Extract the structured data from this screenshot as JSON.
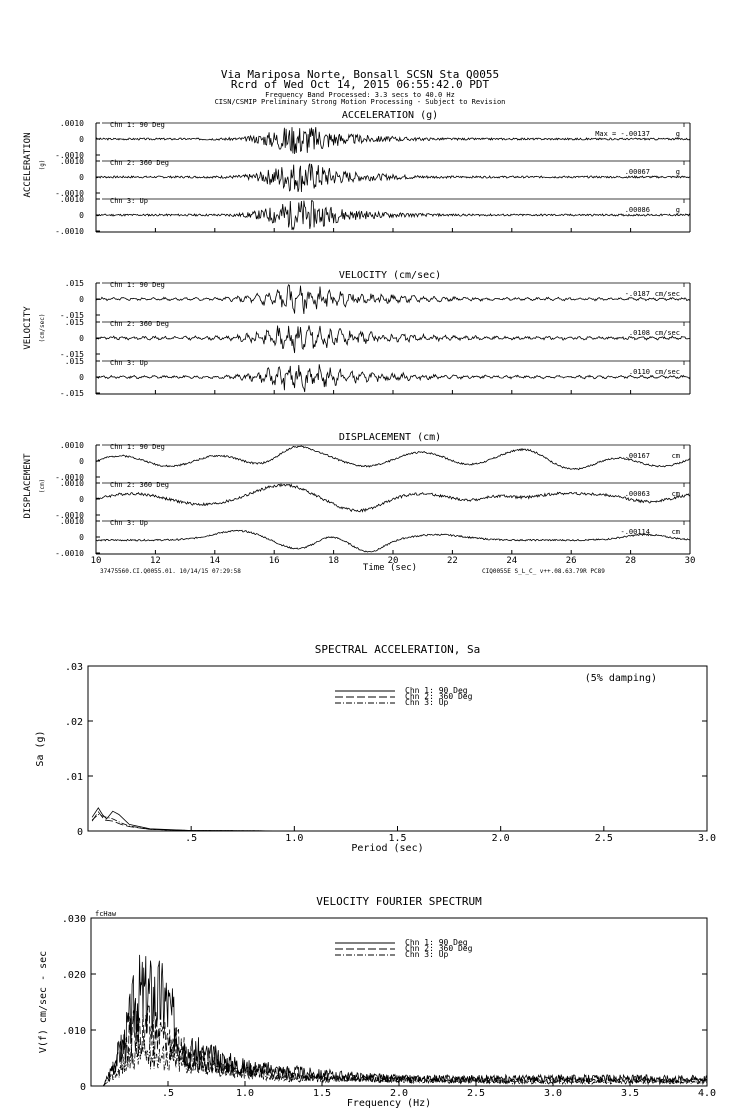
{
  "header": {
    "line1": "Via Mariposa Norte, Bonsall    SCSN Sta Q0055",
    "line2": "Rcrd of Wed Oct 14, 2015 06:55:42.0 PDT",
    "line3": "Frequency Band Processed: 3.3 secs to 40.0 Hz",
    "line4": "CISN/CSMIP Preliminary Strong Motion Processing - Subject to Revision"
  },
  "time_axis": {
    "xlabel": "Time (sec)",
    "ticks": [
      "10",
      "12",
      "14",
      "16",
      "18",
      "20",
      "22",
      "24",
      "26",
      "28",
      "30"
    ],
    "footer_left": "37475560.CI.Q0055.01. 10/14/15 07:29:58",
    "footer_right": "CIQ0055E  S_L_C_  v++.08.63.79R PC89"
  },
  "chart_data": [
    {
      "type": "line",
      "title": "ACCELERATION (g)",
      "side_label": "ACCELERATION",
      "unit_label": "(g)",
      "xlim": [
        10,
        30
      ],
      "channels": [
        {
          "name": "Chn 1: 90 Deg",
          "peak": "Max =  -.00137",
          "unit": "g",
          "ymax": ".0010",
          "ymid": "0",
          "ymin": "-.0010",
          "shape": "accel",
          "amp": 0.00137,
          "seed": 3
        },
        {
          "name": "Chn 2: 360 Deg",
          "peak": ".00067",
          "unit": "g",
          "ymax": ".0010",
          "ymid": "0",
          "ymin": "-.0010",
          "shape": "accel",
          "amp": 0.00067,
          "seed": 7
        },
        {
          "name": "Chn 3: Up",
          "peak": ".00086",
          "unit": "g",
          "ymax": ".0010",
          "ymid": "0",
          "ymin": "-.0010",
          "shape": "accel",
          "amp": 0.00086,
          "seed": 11
        }
      ]
    },
    {
      "type": "line",
      "title": "VELOCITY (cm/sec)",
      "side_label": "VELOCITY",
      "unit_label": "(cm/sec)",
      "xlim": [
        10,
        30
      ],
      "channels": [
        {
          "name": "Chn 1: 90 Deg",
          "peak": "-.0187",
          "unit": "cm/sec",
          "ymax": ".015",
          "ymid": "0",
          "ymin": "-.015",
          "shape": "vel",
          "amp": 0.0187,
          "seed": 5
        },
        {
          "name": "Chn 2: 360 Deg",
          "peak": ".0108",
          "unit": "cm/sec",
          "ymax": ".015",
          "ymid": "0",
          "ymin": "-.015",
          "shape": "vel",
          "amp": 0.0108,
          "seed": 9
        },
        {
          "name": "Chn 3: Up",
          "peak": ".0110",
          "unit": "cm/sec",
          "ymax": ".015",
          "ymid": "0",
          "ymin": "-.015",
          "shape": "vel",
          "amp": 0.011,
          "seed": 13
        }
      ]
    },
    {
      "type": "line",
      "title": "DISPLACEMENT (cm)",
      "side_label": "DISPLACEMENT",
      "unit_label": "(cm)",
      "xlim": [
        10,
        30
      ],
      "channels": [
        {
          "name": "Chn 1: 90 Deg",
          "peak": ".00167",
          "unit": "cm",
          "ymax": ".0010",
          "ymid": "0",
          "ymin": "-.0010",
          "shape": "disp1",
          "amp": 0.00167,
          "seed": 2
        },
        {
          "name": "Chn 2: 360 Deg",
          "peak": ".00063",
          "unit": "cm",
          "ymax": ".0010",
          "ymid": "0",
          "ymin": "-.0010",
          "shape": "disp2",
          "amp": 0.00063,
          "seed": 4
        },
        {
          "name": "Chn 3: Up",
          "peak": "-.00114",
          "unit": "cm",
          "ymax": ".0010",
          "ymid": "0",
          "ymin": "-.0010",
          "shape": "disp3",
          "amp": 0.00114,
          "seed": 6
        }
      ]
    },
    {
      "type": "line",
      "title": "SPECTRAL ACCELERATION, Sa",
      "xlabel": "Period (sec)",
      "ylabel": "Sa (g)",
      "annotation": "(5% damping)",
      "xlim": [
        0,
        3.0
      ],
      "ylim": [
        0,
        0.03
      ],
      "xticks": [
        ".5",
        "1.0",
        "1.5",
        "2.0",
        "2.5",
        "3.0"
      ],
      "xtick_values": [
        0.5,
        1.0,
        1.5,
        2.0,
        2.5,
        3.0
      ],
      "yticks": [
        ".03",
        ".02",
        ".01",
        "0"
      ],
      "ytick_values": [
        0.03,
        0.02,
        0.01,
        0
      ],
      "legend": [
        "Chn 1: 90 Deg",
        "Chn 2: 360 Deg",
        "Chn 3: Up"
      ],
      "series": [
        {
          "name": "Chn 1: 90 Deg",
          "style": "solid",
          "points": [
            [
              0.02,
              0.0025
            ],
            [
              0.05,
              0.0042
            ],
            [
              0.07,
              0.003
            ],
            [
              0.09,
              0.0022
            ],
            [
              0.12,
              0.0036
            ],
            [
              0.15,
              0.003
            ],
            [
              0.2,
              0.0012
            ],
            [
              0.3,
              0.0004
            ],
            [
              0.5,
              0.0001
            ],
            [
              1.0,
              0.0
            ],
            [
              3.0,
              0.0
            ]
          ]
        },
        {
          "name": "Chn 2: 360 Deg",
          "style": "dash",
          "points": [
            [
              0.02,
              0.0018
            ],
            [
              0.05,
              0.0035
            ],
            [
              0.08,
              0.002
            ],
            [
              0.12,
              0.0018
            ],
            [
              0.16,
              0.0012
            ],
            [
              0.2,
              0.0008
            ],
            [
              0.3,
              0.0003
            ],
            [
              0.5,
              0.0001
            ],
            [
              1.0,
              0.0
            ],
            [
              3.0,
              0.0
            ]
          ]
        },
        {
          "name": "Chn 3: Up",
          "style": "dashdot",
          "points": [
            [
              0.02,
              0.002
            ],
            [
              0.05,
              0.003
            ],
            [
              0.08,
              0.0026
            ],
            [
              0.12,
              0.0022
            ],
            [
              0.16,
              0.0015
            ],
            [
              0.2,
              0.0009
            ],
            [
              0.3,
              0.0003
            ],
            [
              0.5,
              0.0001
            ],
            [
              1.0,
              0.0
            ],
            [
              3.0,
              0.0
            ]
          ]
        }
      ]
    },
    {
      "type": "line",
      "title": "VELOCITY FOURIER SPECTRUM",
      "xlabel": "Frequency (Hz)",
      "ylabel": "V(f)   cm/sec - sec",
      "corner_label": "fcHaw",
      "xlim": [
        0,
        4.0
      ],
      "ylim": [
        0,
        0.03
      ],
      "xticks": [
        ".5",
        "1.0",
        "1.5",
        "2.0",
        "2.5",
        "3.0",
        "3.5",
        "4.0"
      ],
      "xtick_values": [
        0.5,
        1.0,
        1.5,
        2.0,
        2.5,
        3.0,
        3.5,
        4.0
      ],
      "yticks": [
        ".030",
        ".020",
        ".010",
        "0"
      ],
      "ytick_values": [
        0.03,
        0.02,
        0.01,
        0
      ],
      "legend": [
        "Chn 1: 90 Deg",
        "Chn 2: 360 Deg",
        "Chn 3: Up"
      ],
      "series": [
        {
          "name": "Chn 1: 90 Deg",
          "style": "solid",
          "peak_points": [
            [
              0.3,
              0.024
            ],
            [
              0.38,
              0.024
            ],
            [
              0.48,
              0.023
            ],
            [
              0.22,
              0.012
            ],
            [
              0.6,
              0.01
            ],
            [
              0.75,
              0.008
            ],
            [
              1.0,
              0.005
            ],
            [
              1.5,
              0.003
            ],
            [
              2.0,
              0.002
            ],
            [
              3.5,
              0.002
            ]
          ]
        },
        {
          "name": "Chn 2: 360 Deg",
          "style": "dash",
          "peak_points": [
            [
              0.25,
              0.013
            ],
            [
              0.35,
              0.015
            ],
            [
              0.5,
              0.012
            ],
            [
              0.7,
              0.007
            ],
            [
              1.0,
              0.004
            ],
            [
              1.5,
              0.002
            ],
            [
              2.5,
              0.0015
            ],
            [
              3.7,
              0.0015
            ]
          ]
        },
        {
          "name": "Chn 3: Up",
          "style": "dashdot",
          "peak_points": [
            [
              0.3,
              0.009
            ],
            [
              0.45,
              0.008
            ],
            [
              0.6,
              0.006
            ],
            [
              0.9,
              0.004
            ],
            [
              1.3,
              0.002
            ],
            [
              2.0,
              0.0015
            ],
            [
              3.0,
              0.001
            ]
          ]
        }
      ]
    }
  ]
}
